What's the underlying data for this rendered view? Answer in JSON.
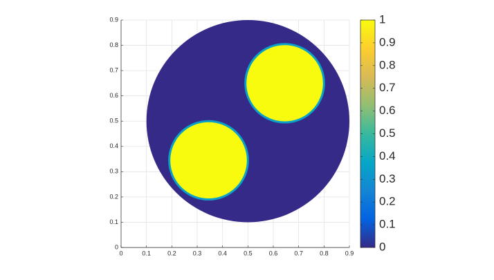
{
  "chart_data": {
    "type": "field",
    "regions": [
      {
        "cx": 0.5,
        "cy": 0.5,
        "r": 0.4,
        "value": 0
      },
      {
        "cx": 0.345,
        "cy": 0.345,
        "r": 0.155,
        "value": 1
      },
      {
        "cx": 0.645,
        "cy": 0.65,
        "r": 0.155,
        "value": 1
      }
    ],
    "xlim": [
      0,
      0.9
    ],
    "ylim": [
      0,
      0.9
    ],
    "xticks": [
      0,
      0.1,
      0.2,
      0.3,
      0.4,
      0.5,
      0.6,
      0.7,
      0.8,
      0.9
    ],
    "yticks": [
      0,
      0.1,
      0.2,
      0.3,
      0.4,
      0.5,
      0.6,
      0.7,
      0.8,
      0.9
    ],
    "grid": true,
    "colormap": "parula",
    "clim": [
      0,
      1
    ],
    "cticks": [
      0,
      0.1,
      0.2,
      0.3,
      0.4,
      0.5,
      0.6,
      0.7,
      0.8,
      0.9,
      1
    ]
  }
}
